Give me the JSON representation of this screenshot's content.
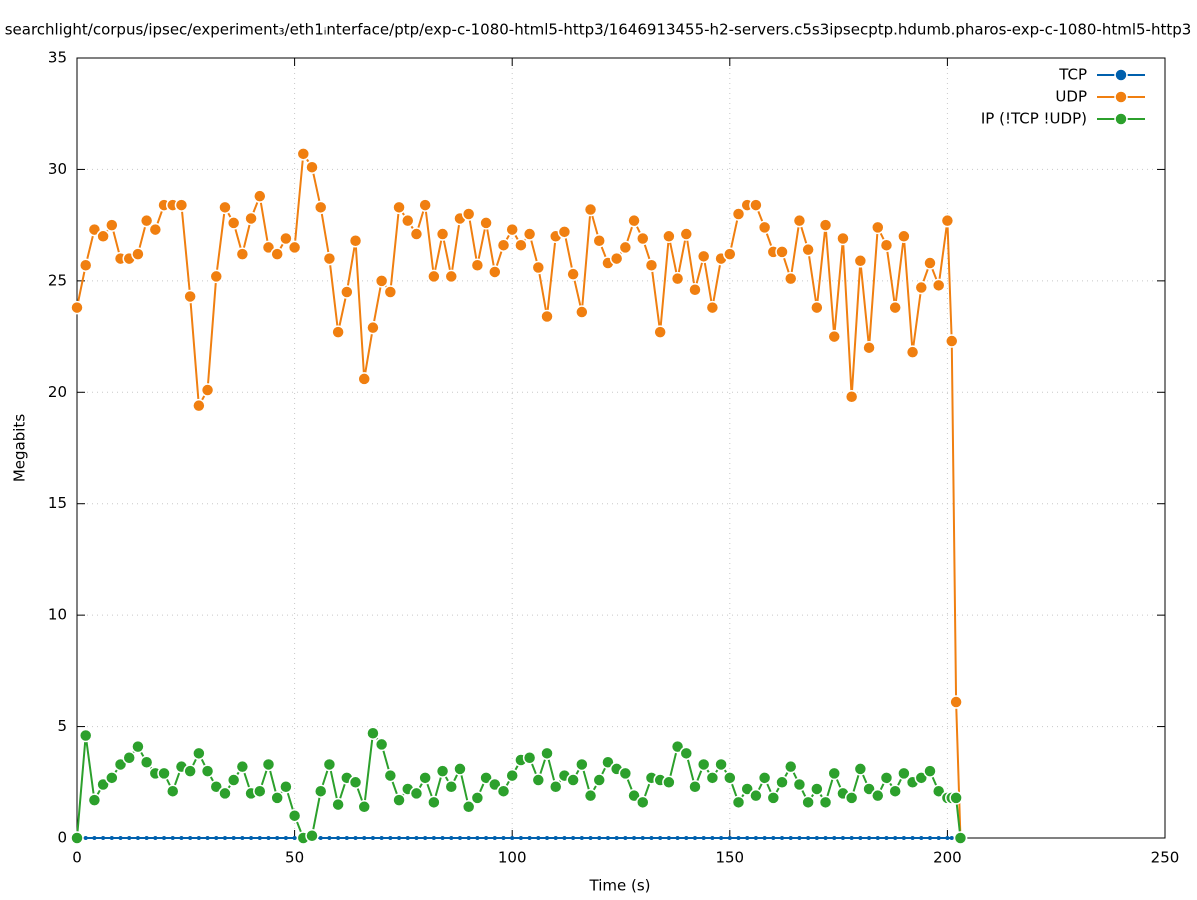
{
  "chart_data": {
    "type": "line",
    "title": "searchlight/corpus/ipsec/experiment₃/eth1ᵢnterface/ptp/exp-c-1080-html5-http3/1646913455-h2-servers.c5s3ipsecptp.hdumb.pharos-exp-c-1080-html5-http3",
    "xlabel": "Time (s)",
    "ylabel": "Megabits",
    "x": [
      0,
      2,
      4,
      6,
      8,
      10,
      12,
      14,
      16,
      18,
      20,
      22,
      24,
      26,
      28,
      30,
      32,
      34,
      36,
      38,
      40,
      42,
      44,
      46,
      48,
      50,
      52,
      54,
      56,
      58,
      60,
      62,
      64,
      66,
      68,
      70,
      72,
      74,
      76,
      78,
      80,
      82,
      84,
      86,
      88,
      90,
      92,
      94,
      96,
      98,
      100,
      102,
      104,
      106,
      108,
      110,
      112,
      114,
      116,
      118,
      120,
      122,
      124,
      126,
      128,
      130,
      132,
      134,
      136,
      138,
      140,
      142,
      144,
      146,
      148,
      150,
      152,
      154,
      156,
      158,
      160,
      162,
      164,
      166,
      168,
      170,
      172,
      174,
      176,
      178,
      180,
      182,
      184,
      186,
      188,
      190,
      192,
      194,
      196,
      198,
      200,
      201,
      202,
      203
    ],
    "series": [
      {
        "name": "TCP",
        "color": "#0060ad",
        "values": [
          0,
          0,
          0,
          0,
          0,
          0,
          0,
          0,
          0,
          0,
          0,
          0,
          0,
          0,
          0,
          0,
          0,
          0,
          0,
          0,
          0,
          0,
          0,
          0,
          0,
          0,
          0,
          0,
          0,
          0,
          0,
          0,
          0,
          0,
          0,
          0,
          0,
          0,
          0,
          0,
          0,
          0,
          0,
          0,
          0,
          0,
          0,
          0,
          0,
          0,
          0,
          0,
          0,
          0,
          0,
          0,
          0,
          0,
          0,
          0,
          0,
          0,
          0,
          0,
          0,
          0,
          0,
          0,
          0,
          0,
          0,
          0,
          0,
          0,
          0,
          0,
          0,
          0,
          0,
          0,
          0,
          0,
          0,
          0,
          0,
          0,
          0,
          0,
          0,
          0,
          0,
          0,
          0,
          0,
          0,
          0,
          0,
          0,
          0,
          0,
          0,
          0,
          0,
          0
        ]
      },
      {
        "name": "UDP",
        "color": "#f07f10",
        "values": [
          23.8,
          25.7,
          27.3,
          27.0,
          27.5,
          26.0,
          26.0,
          26.2,
          27.7,
          27.3,
          28.4,
          28.4,
          28.4,
          24.3,
          19.4,
          20.1,
          25.2,
          28.3,
          27.6,
          26.2,
          27.8,
          28.8,
          26.5,
          26.2,
          26.9,
          26.5,
          30.7,
          30.1,
          28.3,
          26.0,
          22.7,
          24.5,
          26.8,
          20.6,
          22.9,
          25.0,
          24.5,
          28.3,
          27.7,
          27.1,
          28.4,
          25.2,
          27.1,
          25.2,
          27.8,
          28.0,
          25.7,
          27.6,
          25.4,
          26.6,
          27.3,
          26.6,
          27.1,
          25.6,
          23.4,
          27.0,
          27.2,
          25.3,
          23.6,
          28.2,
          26.8,
          25.8,
          26.0,
          26.5,
          27.7,
          26.9,
          25.7,
          22.7,
          27.0,
          25.1,
          27.1,
          24.6,
          26.1,
          23.8,
          26.0,
          26.2,
          28.0,
          28.4,
          28.4,
          27.4,
          26.3,
          26.3,
          25.1,
          27.7,
          26.4,
          23.8,
          27.5,
          22.5,
          26.9,
          19.8,
          25.9,
          22.0,
          27.4,
          26.6,
          23.8,
          27.0,
          21.8,
          24.7,
          25.8,
          24.8,
          27.7,
          22.3,
          6.1,
          0
        ]
      },
      {
        "name": "IP (!TCP  !UDP)",
        "color": "#2ca02c",
        "values": [
          0,
          4.6,
          1.7,
          2.4,
          2.7,
          3.3,
          3.6,
          4.1,
          3.4,
          2.9,
          2.9,
          2.1,
          3.2,
          3.0,
          3.8,
          3.0,
          2.3,
          2.0,
          2.6,
          3.2,
          2.0,
          2.1,
          3.3,
          1.8,
          2.3,
          1.0,
          0,
          0.1,
          2.1,
          3.3,
          1.5,
          2.7,
          2.5,
          1.4,
          4.7,
          4.2,
          2.8,
          1.7,
          2.2,
          2.0,
          2.7,
          1.6,
          3.0,
          2.3,
          3.1,
          1.4,
          1.8,
          2.7,
          2.4,
          2.1,
          2.8,
          3.5,
          3.6,
          2.6,
          3.8,
          2.3,
          2.8,
          2.6,
          3.3,
          1.9,
          2.6,
          3.4,
          3.1,
          2.9,
          1.9,
          1.6,
          2.7,
          2.6,
          2.5,
          4.1,
          3.8,
          2.3,
          3.3,
          2.7,
          3.3,
          2.7,
          1.6,
          2.2,
          1.9,
          2.7,
          1.8,
          2.5,
          3.2,
          2.4,
          1.6,
          2.2,
          1.6,
          2.9,
          2.0,
          1.8,
          3.1,
          2.2,
          1.9,
          2.7,
          2.1,
          2.9,
          2.5,
          2.7,
          3.0,
          2.1,
          1.8,
          1.8,
          1.8,
          0
        ]
      }
    ],
    "xlim": [
      0,
      250
    ],
    "xticks": [
      0,
      50,
      100,
      150,
      200,
      250
    ],
    "ylim": [
      0,
      35
    ],
    "yticks": [
      0,
      5,
      10,
      15,
      20,
      25,
      30,
      35
    ],
    "grid": true,
    "legend": "top-right"
  }
}
